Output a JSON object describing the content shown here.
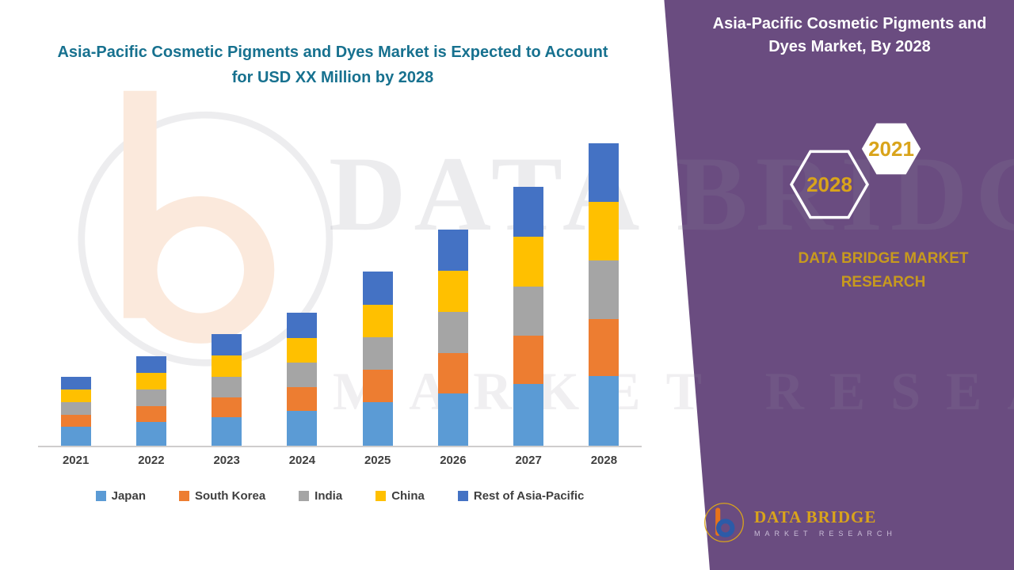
{
  "title": "Asia-Pacific Cosmetic Pigments and Dyes Market is Expected to Account for USD XX Million by 2028",
  "side_panel": {
    "heading": "Asia-Pacific Cosmetic Pigments and Dyes Market, By 2028",
    "hexagon_left": "2028",
    "hexagon_right": "2021",
    "brand": "DATA BRIDGE MARKET RESEARCH",
    "bg_color": "#6A4C80",
    "accent_gold": "#D9A41B"
  },
  "watermark": {
    "line1": "DATA BRIDGE",
    "line2": "MARKET RESEARCH"
  },
  "footer_logo": {
    "brand": "DATA BRIDGE",
    "tagline": "MARKET RESEARCH"
  },
  "chart_data": {
    "type": "bar",
    "stacked": true,
    "title": "Asia-Pacific Cosmetic Pigments and Dyes Market, By 2028",
    "xlabel": "",
    "ylabel": "",
    "unit": "USD Million (actual values masked as XX in source)",
    "y_axis_visible": false,
    "grid": false,
    "legend_position": "bottom",
    "categories": [
      "2021",
      "2022",
      "2023",
      "2024",
      "2025",
      "2026",
      "2027",
      "2028"
    ],
    "series": [
      {
        "name": "Japan",
        "color": "#5B9BD5",
        "values": [
          2.4,
          3.0,
          3.6,
          4.4,
          5.5,
          6.6,
          7.8,
          8.8
        ]
      },
      {
        "name": "South Korea",
        "color": "#ED7D31",
        "values": [
          1.5,
          2.0,
          2.5,
          3.0,
          4.1,
          5.1,
          6.1,
          7.2
        ]
      },
      {
        "name": "India",
        "color": "#A5A5A5",
        "values": [
          1.6,
          2.1,
          2.6,
          3.1,
          4.1,
          5.2,
          6.2,
          7.4
        ]
      },
      {
        "name": "China",
        "color": "#FFC000",
        "values": [
          1.6,
          2.1,
          2.7,
          3.1,
          4.1,
          5.2,
          6.3,
          7.4
        ]
      },
      {
        "name": "Rest of Asia-Pacific",
        "color": "#4472C4",
        "values": [
          1.6,
          2.1,
          2.7,
          3.2,
          4.2,
          5.2,
          6.3,
          7.4
        ]
      }
    ],
    "totals_relative": [
      8.7,
      11.3,
      14.1,
      16.8,
      22.0,
      27.3,
      32.7,
      38.2
    ]
  }
}
